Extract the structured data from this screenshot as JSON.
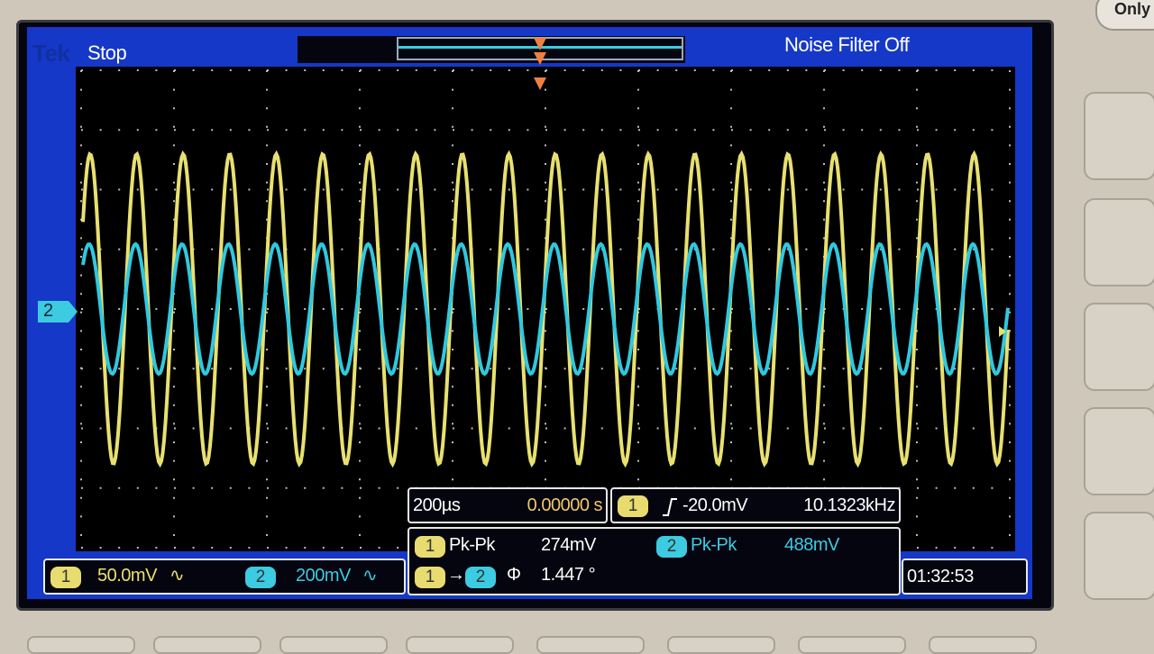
{
  "header": {
    "brand": "Tek",
    "status": "Stop",
    "noise_filter": "Noise Filter Off"
  },
  "corner_button": "Only",
  "ground_marker": "2",
  "trigger_panel": {
    "timebase": "200µs",
    "position": "0.00000 s",
    "source": "1",
    "level": "-20.0mV",
    "frequency": "10.1323kHz"
  },
  "measurements": {
    "rows": [
      {
        "channel": "1",
        "label": "Pk-Pk",
        "value": "274mV"
      },
      {
        "channel": "2",
        "label": "Pk-Pk",
        "value": "488mV"
      }
    ],
    "phase": {
      "from": "1",
      "to": "2",
      "symbol": "Φ",
      "value": "1.447 °"
    }
  },
  "channels": [
    {
      "badge": "1",
      "scale": "50.0mV"
    },
    {
      "badge": "2",
      "scale": "200mV"
    }
  ],
  "clock": "01:32:53"
}
